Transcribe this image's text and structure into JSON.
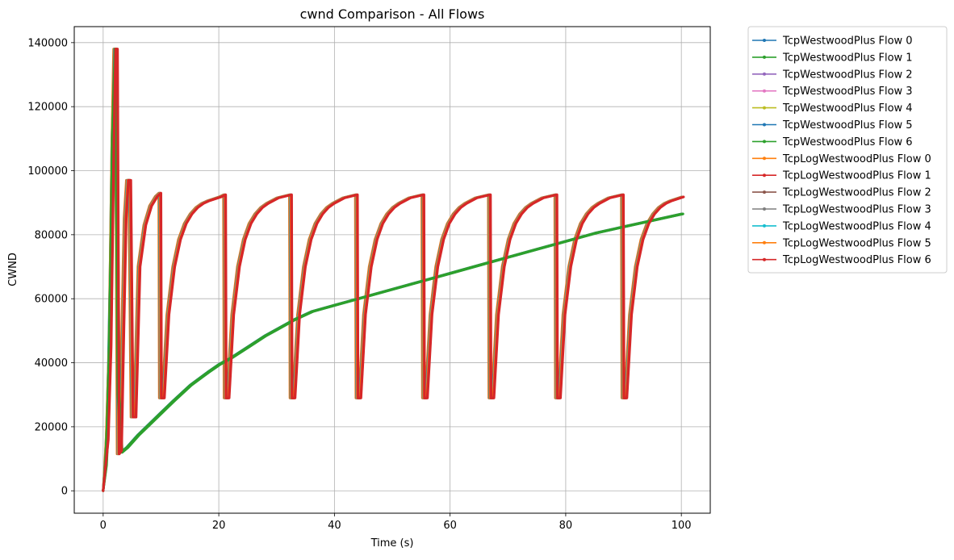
{
  "chart_data": {
    "type": "line",
    "title": "cwnd Comparison - All Flows",
    "xlabel": "Time (s)",
    "ylabel": "CWND",
    "xlim": [
      -5,
      105
    ],
    "ylim": [
      -7000,
      145000
    ],
    "xticks": [
      0,
      20,
      40,
      60,
      80,
      100
    ],
    "xtick_labels": [
      "0",
      "20",
      "40",
      "60",
      "80",
      "100"
    ],
    "yticks": [
      0,
      20000,
      40000,
      60000,
      80000,
      100000,
      120000,
      140000
    ],
    "ytick_labels": [
      "0",
      "20000",
      "40000",
      "60000",
      "80000",
      "100000",
      "120000",
      "140000"
    ],
    "grid": true,
    "legend_position": "outside upper right",
    "westwood_curve": {
      "x": [
        0,
        0.3,
        0.6,
        0.9,
        1.2,
        1.5,
        2,
        2.5,
        3,
        4,
        6,
        8,
        10,
        12,
        15,
        18,
        20,
        22,
        25,
        28,
        30,
        33,
        36,
        38,
        40,
        44,
        50,
        55,
        60,
        65,
        70,
        75,
        80,
        85,
        90,
        95,
        100
      ],
      "y": [
        0,
        8000,
        20000,
        40000,
        70000,
        110000,
        138000,
        30000,
        12000,
        13500,
        17500,
        21000,
        24500,
        28000,
        33000,
        37000,
        39500,
        41500,
        45000,
        48500,
        50500,
        53500,
        56000,
        57000,
        58000,
        60000,
        63000,
        65500,
        68000,
        70500,
        73000,
        75500,
        78000,
        80500,
        82500,
        84500,
        86500
      ]
    },
    "logwestwood_curve": {
      "x": [
        0,
        0.5,
        1,
        1.5,
        1.8,
        2.1,
        2.4,
        2.8,
        3.2,
        3.6,
        4.0,
        4.4,
        4.8,
        5.3,
        6,
        7,
        8,
        9,
        9.6,
        9.7,
        10.2,
        11,
        12,
        13,
        14,
        15,
        16,
        17,
        18,
        20,
        20.8,
        20.9,
        21.4,
        22.2,
        23.2,
        24.2,
        25.2,
        26.2,
        27.2,
        28.2,
        30,
        32.2,
        32.3,
        32.8,
        33.6,
        34.6,
        35.6,
        36.6,
        37.6,
        38.6,
        39.6,
        41.4,
        43.6,
        43.7,
        44.2,
        45,
        46,
        47,
        48,
        49,
        50,
        51,
        52.8,
        55.1,
        55.2,
        55.7,
        56.5,
        57.5,
        58.5,
        59.5,
        60.5,
        61.5,
        62.5,
        64.3,
        66.6,
        66.7,
        67.2,
        68,
        69,
        70,
        71,
        72,
        73,
        74,
        75.8,
        78.1,
        78.2,
        78.7,
        79.5,
        80.5,
        81.5,
        82.5,
        83.5,
        84.5,
        85.5,
        87.3,
        89.6,
        89.7,
        90.2,
        91,
        92,
        93,
        94,
        95,
        96,
        97,
        98,
        100
      ],
      "y": [
        0,
        16000,
        45000,
        110000,
        138000,
        138000,
        11500,
        12500,
        50000,
        85000,
        97000,
        97000,
        23000,
        23000,
        70000,
        83000,
        89000,
        92000,
        93000,
        29000,
        29000,
        55000,
        70000,
        78500,
        83500,
        86500,
        88500,
        89800,
        90600,
        91800,
        92500,
        29000,
        29000,
        55000,
        70000,
        78500,
        83500,
        86500,
        88500,
        89800,
        91500,
        92500,
        29000,
        29000,
        55000,
        70000,
        78500,
        83500,
        86500,
        88500,
        89800,
        91500,
        92500,
        29000,
        29000,
        55000,
        70000,
        78500,
        83500,
        86500,
        88500,
        89800,
        91500,
        92500,
        29000,
        29000,
        55000,
        70000,
        78500,
        83500,
        86500,
        88500,
        89800,
        91500,
        92500,
        29000,
        29000,
        55000,
        70000,
        78500,
        83500,
        86500,
        88500,
        89800,
        91500,
        92500,
        29000,
        29000,
        55000,
        70000,
        78500,
        83500,
        86500,
        88500,
        89800,
        91500,
        92500,
        29000,
        29000,
        55000,
        70000,
        78500,
        83500,
        86500,
        88500,
        89800,
        90600,
        91800
      ]
    },
    "series": [
      {
        "name": "TcpWestwoodPlus Flow 0",
        "color": "#1f77b4",
        "curve": "westwood_curve",
        "draw_order": 1,
        "offset_x": 0.0
      },
      {
        "name": "TcpWestwoodPlus Flow 1",
        "color": "#2ca02c",
        "curve": "westwood_curve",
        "draw_order": 13,
        "offset_x": 0.05
      },
      {
        "name": "TcpWestwoodPlus Flow 2",
        "color": "#9467bd",
        "curve": "westwood_curve",
        "draw_order": 2,
        "offset_x": 0.1
      },
      {
        "name": "TcpWestwoodPlus Flow 3",
        "color": "#e377c2",
        "curve": "westwood_curve",
        "draw_order": 3,
        "offset_x": 0.15
      },
      {
        "name": "TcpWestwoodPlus Flow 4",
        "color": "#bcbd22",
        "curve": "westwood_curve",
        "draw_order": 4,
        "offset_x": 0.2
      },
      {
        "name": "TcpWestwoodPlus Flow 5",
        "color": "#1f77b4",
        "curve": "westwood_curve",
        "draw_order": 5,
        "offset_x": 0.25
      },
      {
        "name": "TcpWestwoodPlus Flow 6",
        "color": "#2ca02c",
        "curve": "westwood_curve",
        "draw_order": 14,
        "offset_x": 0.3
      },
      {
        "name": "TcpLogWestwoodPlus Flow 0",
        "color": "#ff7f0e",
        "curve": "logwestwood_curve",
        "draw_order": 6,
        "offset_x": 0.0
      },
      {
        "name": "TcpLogWestwoodPlus Flow 1",
        "color": "#d62728",
        "curve": "logwestwood_curve",
        "draw_order": 15,
        "offset_x": 0.35
      },
      {
        "name": "TcpLogWestwoodPlus Flow 2",
        "color": "#8c564b",
        "curve": "logwestwood_curve",
        "draw_order": 7,
        "offset_x": 0.1
      },
      {
        "name": "TcpLogWestwoodPlus Flow 3",
        "color": "#7f7f7f",
        "curve": "logwestwood_curve",
        "draw_order": 8,
        "offset_x": 0.15
      },
      {
        "name": "TcpLogWestwoodPlus Flow 4",
        "color": "#17becf",
        "curve": "logwestwood_curve",
        "draw_order": 9,
        "offset_x": 0.2
      },
      {
        "name": "TcpLogWestwoodPlus Flow 5",
        "color": "#ff7f0e",
        "curve": "logwestwood_curve",
        "draw_order": 10,
        "offset_x": 0.25
      },
      {
        "name": "TcpLogWestwoodPlus Flow 6",
        "color": "#d62728",
        "curve": "logwestwood_curve",
        "draw_order": 16,
        "offset_x": 0.4
      }
    ]
  }
}
